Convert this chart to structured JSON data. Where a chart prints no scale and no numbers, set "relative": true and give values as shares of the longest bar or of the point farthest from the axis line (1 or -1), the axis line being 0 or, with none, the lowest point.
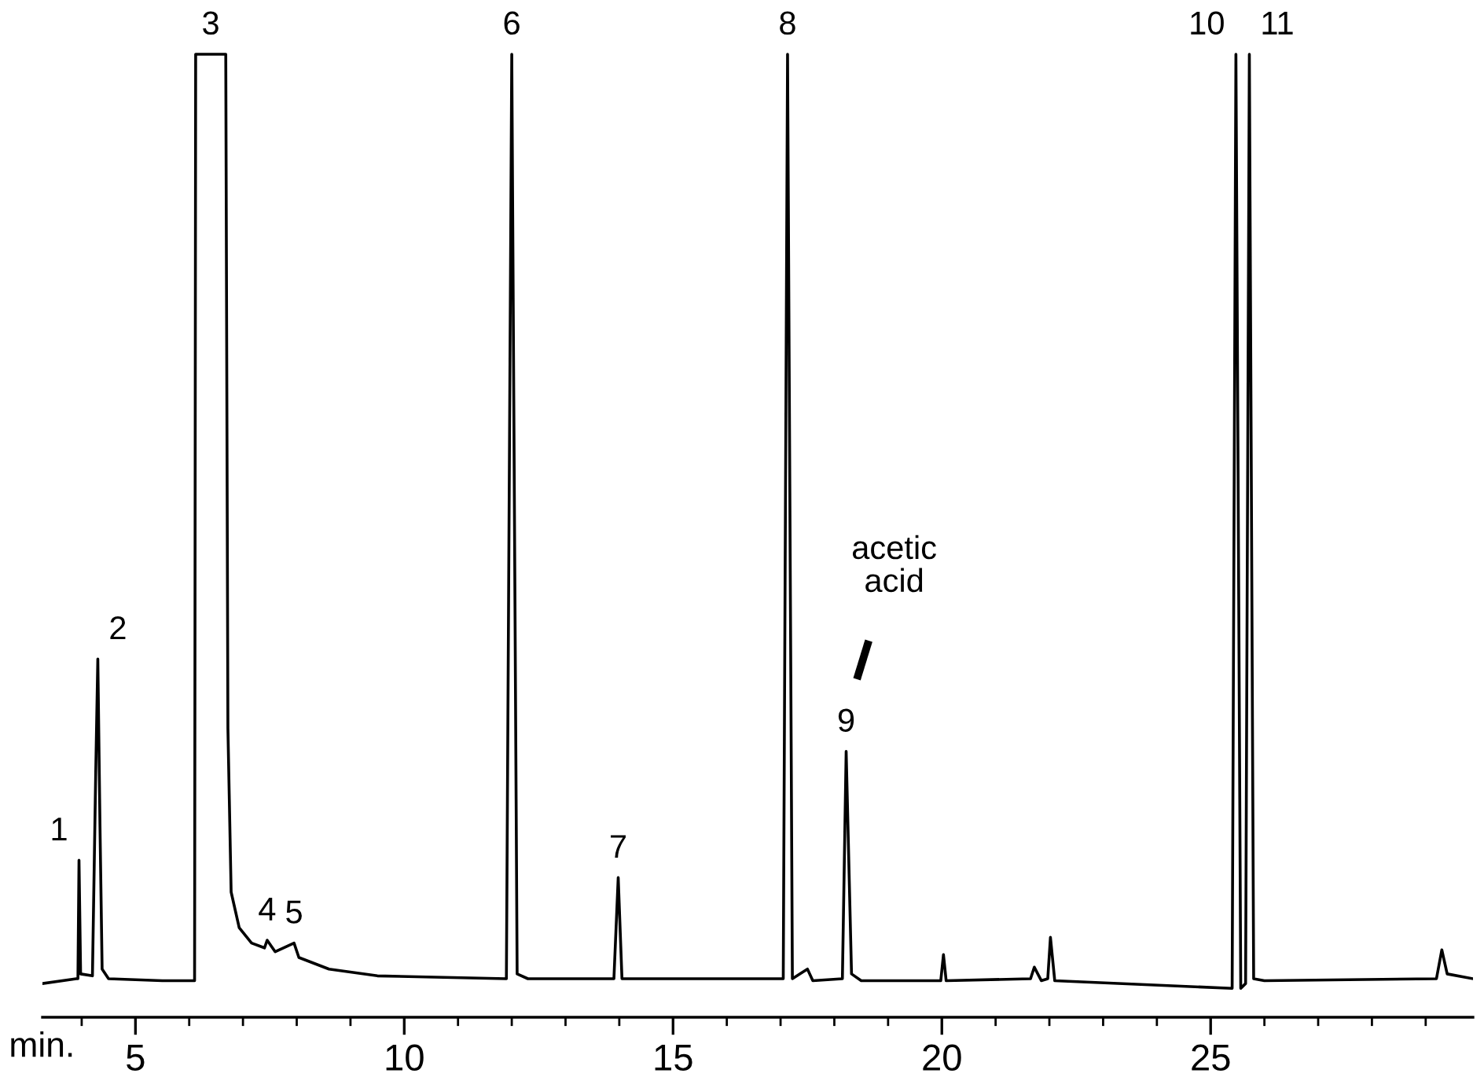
{
  "chart_data": {
    "type": "line",
    "relative": true,
    "xlabel": "min.",
    "xlim": [
      3.27,
      29.88
    ],
    "xticks": [
      {
        "value": 4,
        "label": null
      },
      5,
      {
        "value": 6,
        "label": null
      },
      {
        "value": 7,
        "label": null
      },
      {
        "value": 8,
        "label": null
      },
      {
        "value": 9,
        "label": null
      },
      10,
      {
        "value": 11,
        "label": null
      },
      {
        "value": 12,
        "label": null
      },
      {
        "value": 13,
        "label": null
      },
      {
        "value": 14,
        "label": null
      },
      15,
      {
        "value": 16,
        "label": null
      },
      {
        "value": 17,
        "label": null
      },
      {
        "value": 18,
        "label": null
      },
      {
        "value": 19,
        "label": null
      },
      20,
      {
        "value": 21,
        "label": null
      },
      {
        "value": 22,
        "label": null
      },
      {
        "value": 23,
        "label": null
      },
      {
        "value": 24,
        "label": null
      },
      25,
      {
        "value": 26,
        "label": null
      },
      {
        "value": 27,
        "label": null
      },
      {
        "value": 28,
        "label": null
      },
      {
        "value": 29,
        "label": null
      }
    ],
    "grid": false,
    "legend": false,
    "marker": "none",
    "line_style": "solid",
    "series": [
      {
        "color": "#000000",
        "x": [
          3.27,
          3.9,
          3.93,
          3.95,
          3.98,
          4.2,
          4.26,
          4.3,
          4.34,
          4.38,
          4.5,
          5.5,
          6.1,
          6.12,
          6.68,
          6.72,
          6.78,
          6.93,
          7.16,
          7.4,
          7.45,
          7.6,
          7.95,
          8.04,
          8.6,
          9.5,
          11.9,
          12.0,
          12.1,
          12.3,
          13.9,
          13.98,
          14.05,
          17.05,
          17.13,
          17.22,
          17.5,
          17.6,
          18.15,
          18.22,
          18.32,
          18.5,
          19.98,
          20.03,
          20.08,
          21.65,
          21.72,
          21.85,
          21.97,
          22.02,
          22.1,
          25.4,
          25.47,
          25.56,
          25.65,
          25.72,
          25.8,
          26.0,
          29.2,
          29.3,
          29.4,
          29.88
        ],
        "values": [
          0.035,
          0.04,
          0.04,
          0.163,
          0.045,
          0.043,
          0.25,
          0.372,
          0.2,
          0.05,
          0.04,
          0.038,
          0.038,
          1.0,
          1.0,
          0.3,
          0.13,
          0.093,
          0.077,
          0.072,
          0.08,
          0.068,
          0.077,
          0.062,
          0.05,
          0.043,
          0.04,
          1.0,
          0.045,
          0.04,
          0.04,
          0.145,
          0.04,
          0.04,
          1.0,
          0.04,
          0.05,
          0.038,
          0.04,
          0.276,
          0.045,
          0.038,
          0.038,
          0.065,
          0.038,
          0.04,
          0.052,
          0.038,
          0.04,
          0.083,
          0.038,
          0.03,
          1.0,
          0.03,
          0.035,
          1.0,
          0.04,
          0.038,
          0.04,
          0.07,
          0.045,
          0.04
        ]
      }
    ],
    "annotations": [
      {
        "text": "1",
        "x": 3.95,
        "y": 0.163
      },
      {
        "text": "2",
        "x": 4.3,
        "y": 0.372
      },
      {
        "text": "3",
        "x": 6.4,
        "y": 1.0
      },
      {
        "text": "4",
        "x": 7.45,
        "y": 0.08
      },
      {
        "text": "5",
        "x": 7.95,
        "y": 0.077
      },
      {
        "text": "6",
        "x": 12.0,
        "y": 1.0
      },
      {
        "text": "7",
        "x": 13.98,
        "y": 0.145
      },
      {
        "text": "8",
        "x": 17.13,
        "y": 1.0
      },
      {
        "text": "9",
        "x": 18.22,
        "y": 0.276
      },
      "acetic\nacid",
      {
        "text": "10",
        "x": 25.47,
        "y": 1.0
      },
      {
        "text": "11",
        "x": 25.72,
        "y": 1.0
      }
    ]
  }
}
